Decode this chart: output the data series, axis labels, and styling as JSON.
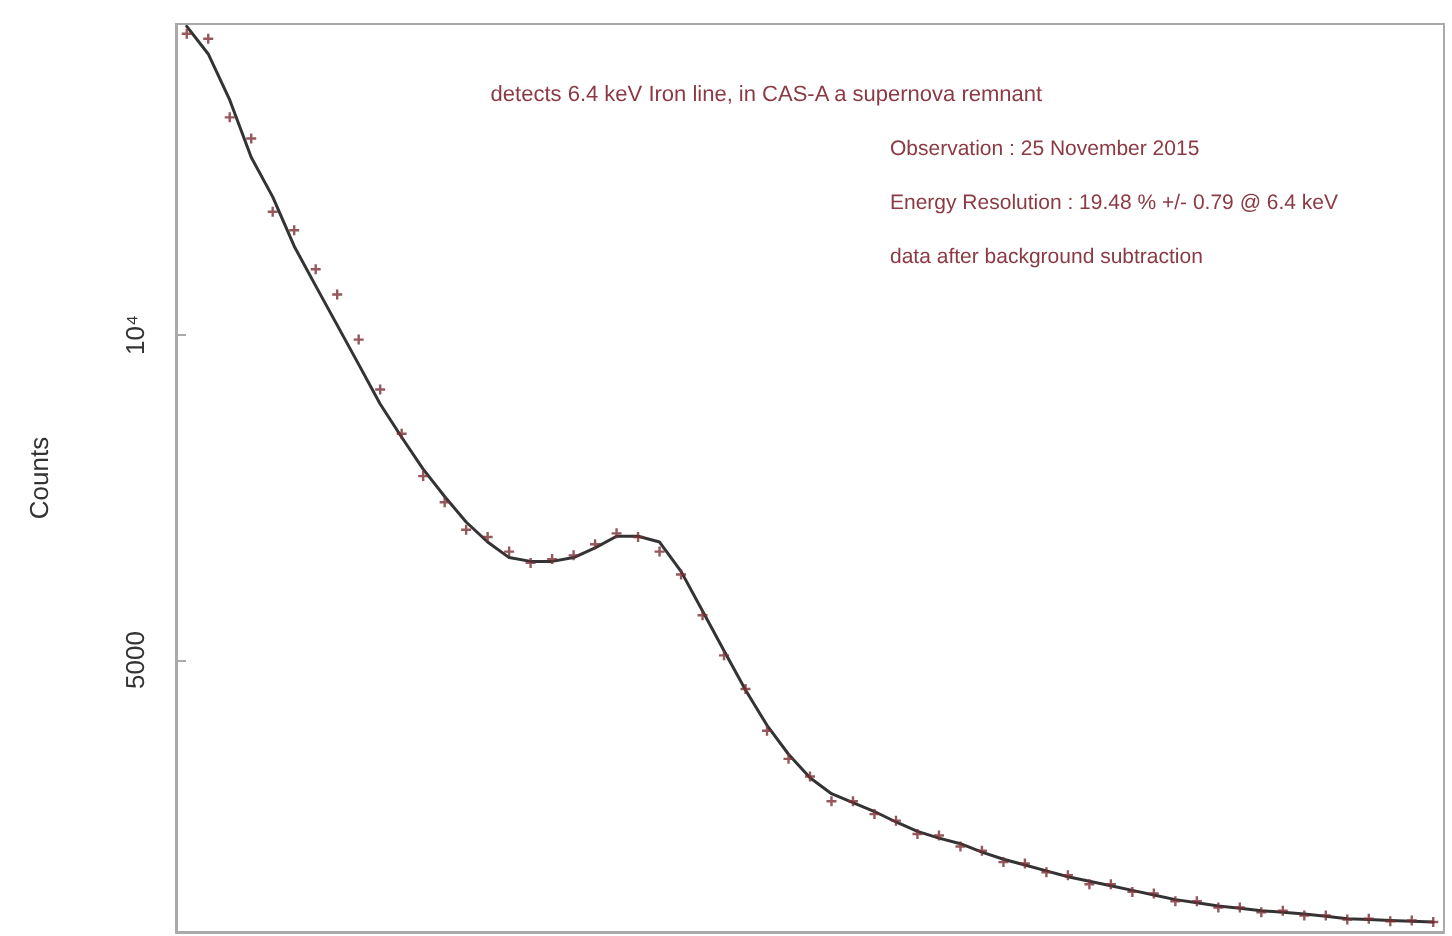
{
  "chart_data": {
    "type": "scatter",
    "ylabel": "Counts",
    "log": true,
    "ylim": [
      2800,
      19400
    ],
    "yticks": [
      5000,
      {
        "value": 10000,
        "label": "10⁴"
      }
    ],
    "tick_labels": "y",
    "grid": false,
    "categories": [
      null,
      null,
      null,
      null,
      null,
      null,
      null,
      null,
      null,
      null,
      null,
      null,
      null,
      null,
      null,
      null,
      null,
      null,
      null,
      null,
      null,
      null,
      null,
      null,
      null,
      null,
      null,
      null,
      null,
      null,
      null,
      null,
      null,
      null,
      null,
      null,
      null,
      null,
      null,
      null,
      null,
      null,
      null,
      null,
      null,
      null,
      null,
      null,
      null,
      null,
      null,
      null,
      null,
      null,
      null,
      null,
      null,
      null,
      null
    ],
    "annotations": [
      "detects 6.4 keV Iron line, in CAS-A a supernova remnant",
      "Observation : 25 November 2015",
      "Energy Resolution : 19.48 % +/- 0.79 @ 6.4 keV",
      "data after background subtraction"
    ],
    "series": [
      {
        "marker": "cross",
        "color": "#7a2e33",
        "values": [
          19000,
          18800,
          15900,
          15200,
          13000,
          12500,
          11500,
          10900,
          9900,
          8900,
          8100,
          7400,
          7000,
          6600,
          6500,
          6300,
          6150,
          6200,
          6250,
          6400,
          6550,
          6500,
          6300,
          6000,
          5500,
          5050,
          4700,
          4300,
          4050,
          3900,
          3700,
          3700,
          3600,
          3550,
          3450,
          3440,
          3360,
          3330,
          3250,
          3240,
          3180,
          3160,
          3100,
          3100,
          3050,
          3040,
          2990,
          2990,
          2950,
          2950,
          2920,
          2930,
          2900,
          2900,
          2875,
          2880,
          2865,
          2870,
          2860
        ]
      },
      {
        "type": "line",
        "marker": "none",
        "line_style": "solid",
        "color": "#333333",
        "values": [
          19300,
          18200,
          16500,
          14600,
          13420,
          12080,
          11100,
          10210,
          9390,
          8630,
          8040,
          7510,
          7085,
          6710,
          6430,
          6220,
          6170,
          6170,
          6220,
          6350,
          6510,
          6510,
          6430,
          6040,
          5550,
          5100,
          4690,
          4350,
          4090,
          3890,
          3760,
          3690,
          3620,
          3540,
          3470,
          3420,
          3380,
          3320,
          3270,
          3230,
          3190,
          3150,
          3120,
          3090,
          3060,
          3030,
          3000,
          2980,
          2960,
          2945,
          2930,
          2920,
          2910,
          2895,
          2880,
          2875,
          2870,
          2865,
          2860
        ]
      }
    ]
  }
}
